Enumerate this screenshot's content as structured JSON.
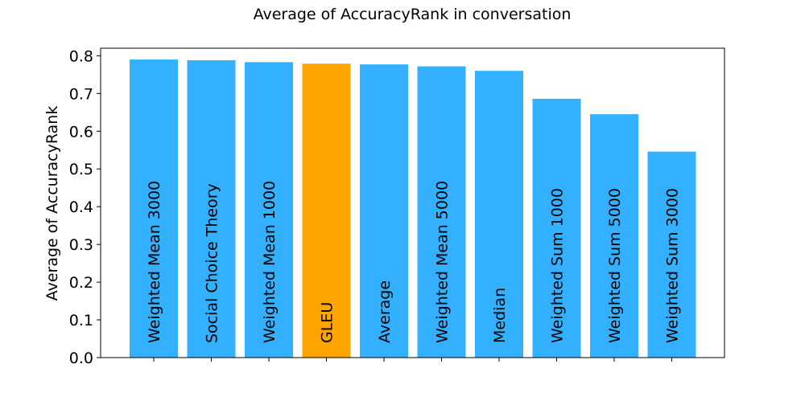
{
  "chart_data": {
    "type": "bar",
    "title": "Average of AccuracyRank in conversation",
    "xlabel": "",
    "ylabel": "Average of AccuracyRank",
    "ylim": [
      0,
      0.82
    ],
    "yticks": [
      "0.0",
      "0.1",
      "0.2",
      "0.3",
      "0.4",
      "0.5",
      "0.6",
      "0.7",
      "0.8"
    ],
    "grid": false,
    "legend": "none",
    "categories": [
      "Weighted Mean 3000",
      "Social Choice Theory",
      "Weighted Mean 1000",
      "GLEU",
      "Average",
      "Weighted Mean 5000",
      "Median",
      "Weighted Sum 1000",
      "Weighted Sum 5000",
      "Weighted Sum 3000"
    ],
    "values": [
      0.79,
      0.788,
      0.783,
      0.779,
      0.777,
      0.772,
      0.76,
      0.686,
      0.645,
      0.546
    ],
    "colors": {
      "default": "#33b0ff",
      "highlight": "#ffa500",
      "highlight_category": "GLEU"
    }
  }
}
